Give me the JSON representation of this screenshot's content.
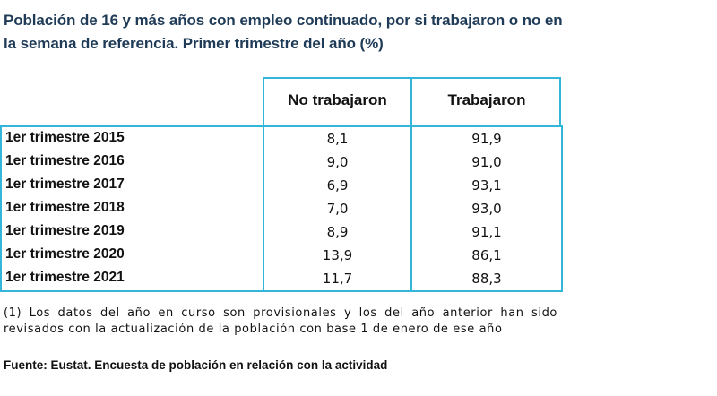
{
  "title": "Población de 16 y más años con empleo continuado, por si trabajaron o no en la semana de referencia. Primer trimestre del año (%)",
  "columns": [
    "No trabajaron",
    "Trabajaron"
  ],
  "rows": [
    {
      "label": "1er trimestre 2015",
      "no_trabajaron": "8,1",
      "trabajaron": "91,9"
    },
    {
      "label": "1er trimestre 2016",
      "no_trabajaron": "9,0",
      "trabajaron": "91,0"
    },
    {
      "label": "1er trimestre 2017",
      "no_trabajaron": "6,9",
      "trabajaron": "93,1"
    },
    {
      "label": "1er trimestre 2018",
      "no_trabajaron": "7,0",
      "trabajaron": "93,0"
    },
    {
      "label": "1er trimestre 2019",
      "no_trabajaron": "8,9",
      "trabajaron": "91,1"
    },
    {
      "label": "1er trimestre 2020",
      "no_trabajaron": "13,9",
      "trabajaron": "86,1"
    },
    {
      "label": "1er trimestre 2021",
      "no_trabajaron": "11,7",
      "trabajaron": "88,3"
    }
  ],
  "note": "(1) Los datos del año en curso son provisionales y los del año anterior han sido revisados con la actualización de la población con base 1 de enero de ese año",
  "source": "Fuente: Eustat. Encuesta de población en relación con la actividad",
  "colors": {
    "border": "#33b6d8",
    "title": "#1f3b57"
  }
}
